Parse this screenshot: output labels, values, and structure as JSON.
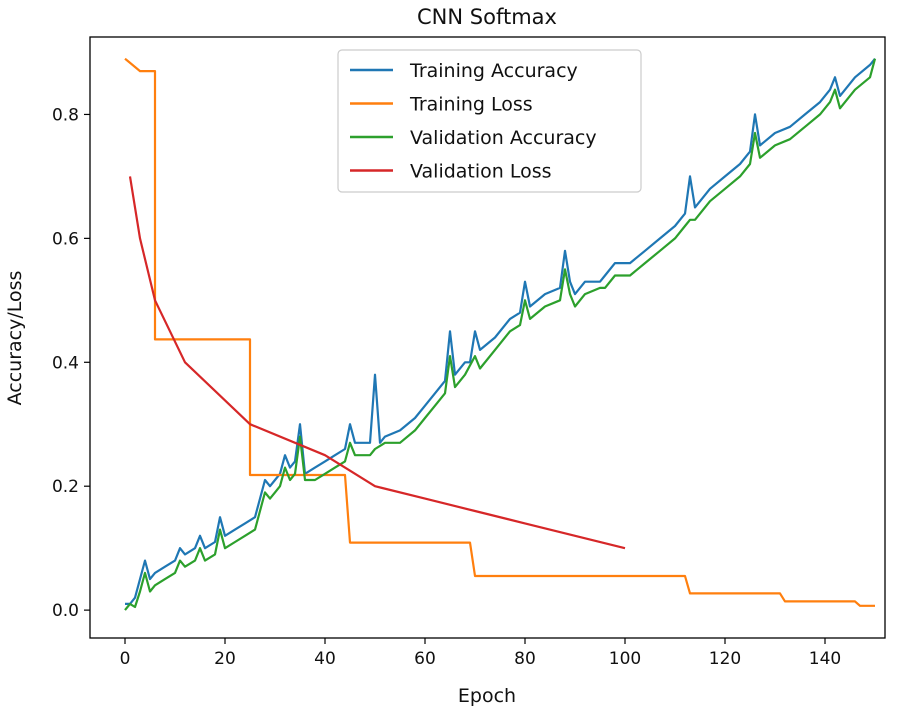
{
  "chart_data": {
    "type": "line",
    "title": "CNN Softmax",
    "xlabel": "Epoch",
    "ylabel": "Accuracy/Loss",
    "xlim": [
      -7,
      152
    ],
    "ylim": [
      -0.045,
      0.925
    ],
    "xticks": [
      0,
      20,
      40,
      60,
      80,
      100,
      120,
      140
    ],
    "xtick_labels": [
      "0",
      "20",
      "40",
      "60",
      "80",
      "100",
      "120",
      "140"
    ],
    "yticks": [
      0.0,
      0.2,
      0.4,
      0.6,
      0.8
    ],
    "ytick_labels": [
      "0.0",
      "0.2",
      "0.4",
      "0.6",
      "0.8"
    ],
    "grid": false,
    "legend_location": "upper center",
    "series": [
      {
        "name": "Training Accuracy",
        "color": "#1f77b4",
        "points": [
          [
            0,
            0.01
          ],
          [
            1,
            0.01
          ],
          [
            2,
            0.02
          ],
          [
            3,
            0.05
          ],
          [
            4,
            0.08
          ],
          [
            5,
            0.05
          ],
          [
            6,
            0.06
          ],
          [
            8,
            0.07
          ],
          [
            10,
            0.08
          ],
          [
            11,
            0.1
          ],
          [
            12,
            0.09
          ],
          [
            14,
            0.1
          ],
          [
            15,
            0.12
          ],
          [
            16,
            0.1
          ],
          [
            18,
            0.11
          ],
          [
            19,
            0.15
          ],
          [
            20,
            0.12
          ],
          [
            22,
            0.13
          ],
          [
            24,
            0.14
          ],
          [
            26,
            0.15
          ],
          [
            27,
            0.18
          ],
          [
            28,
            0.21
          ],
          [
            29,
            0.2
          ],
          [
            30,
            0.21
          ],
          [
            31,
            0.22
          ],
          [
            32,
            0.25
          ],
          [
            33,
            0.23
          ],
          [
            34,
            0.24
          ],
          [
            35,
            0.3
          ],
          [
            36,
            0.22
          ],
          [
            38,
            0.23
          ],
          [
            40,
            0.24
          ],
          [
            42,
            0.25
          ],
          [
            44,
            0.26
          ],
          [
            45,
            0.3
          ],
          [
            46,
            0.27
          ],
          [
            48,
            0.27
          ],
          [
            49,
            0.27
          ],
          [
            50,
            0.38
          ],
          [
            51,
            0.27
          ],
          [
            52,
            0.28
          ],
          [
            55,
            0.29
          ],
          [
            58,
            0.31
          ],
          [
            60,
            0.33
          ],
          [
            62,
            0.35
          ],
          [
            64,
            0.37
          ],
          [
            65,
            0.45
          ],
          [
            66,
            0.38
          ],
          [
            68,
            0.4
          ],
          [
            69,
            0.4
          ],
          [
            70,
            0.45
          ],
          [
            71,
            0.42
          ],
          [
            74,
            0.44
          ],
          [
            77,
            0.47
          ],
          [
            79,
            0.48
          ],
          [
            80,
            0.53
          ],
          [
            81,
            0.49
          ],
          [
            84,
            0.51
          ],
          [
            87,
            0.52
          ],
          [
            88,
            0.58
          ],
          [
            89,
            0.53
          ],
          [
            90,
            0.51
          ],
          [
            92,
            0.53
          ],
          [
            95,
            0.53
          ],
          [
            96,
            0.54
          ],
          [
            98,
            0.56
          ],
          [
            101,
            0.56
          ],
          [
            104,
            0.58
          ],
          [
            107,
            0.6
          ],
          [
            110,
            0.62
          ],
          [
            112,
            0.64
          ],
          [
            113,
            0.7
          ],
          [
            114,
            0.65
          ],
          [
            117,
            0.68
          ],
          [
            120,
            0.7
          ],
          [
            123,
            0.72
          ],
          [
            125,
            0.74
          ],
          [
            126,
            0.8
          ],
          [
            127,
            0.75
          ],
          [
            130,
            0.77
          ],
          [
            133,
            0.78
          ],
          [
            136,
            0.8
          ],
          [
            139,
            0.82
          ],
          [
            141,
            0.84
          ],
          [
            142,
            0.86
          ],
          [
            143,
            0.83
          ],
          [
            146,
            0.86
          ],
          [
            149,
            0.88
          ],
          [
            150,
            0.89
          ]
        ]
      },
      {
        "name": "Training Loss",
        "color": "#ff7f0e",
        "points": [
          [
            0,
            0.89
          ],
          [
            3,
            0.87
          ],
          [
            5,
            0.87
          ],
          [
            6,
            0.87
          ],
          [
            6,
            0.437
          ],
          [
            24,
            0.437
          ],
          [
            25,
            0.437
          ],
          [
            25,
            0.218
          ],
          [
            43,
            0.218
          ],
          [
            44,
            0.218
          ],
          [
            45,
            0.109
          ],
          [
            69,
            0.109
          ],
          [
            70,
            0.055
          ],
          [
            112,
            0.055
          ],
          [
            113,
            0.027
          ],
          [
            131,
            0.027
          ],
          [
            132,
            0.014
          ],
          [
            146,
            0.014
          ],
          [
            147,
            0.007
          ],
          [
            150,
            0.007
          ]
        ]
      },
      {
        "name": "Validation Accuracy",
        "color": "#2ca02c",
        "points": [
          [
            0,
            0.0
          ],
          [
            1,
            0.01
          ],
          [
            2,
            0.005
          ],
          [
            3,
            0.03
          ],
          [
            4,
            0.06
          ],
          [
            5,
            0.03
          ],
          [
            6,
            0.04
          ],
          [
            8,
            0.05
          ],
          [
            10,
            0.06
          ],
          [
            11,
            0.08
          ],
          [
            12,
            0.07
          ],
          [
            14,
            0.08
          ],
          [
            15,
            0.1
          ],
          [
            16,
            0.08
          ],
          [
            18,
            0.09
          ],
          [
            19,
            0.13
          ],
          [
            20,
            0.1
          ],
          [
            22,
            0.11
          ],
          [
            24,
            0.12
          ],
          [
            26,
            0.13
          ],
          [
            27,
            0.16
          ],
          [
            28,
            0.19
          ],
          [
            29,
            0.18
          ],
          [
            30,
            0.19
          ],
          [
            31,
            0.2
          ],
          [
            32,
            0.23
          ],
          [
            33,
            0.21
          ],
          [
            34,
            0.22
          ],
          [
            35,
            0.28
          ],
          [
            36,
            0.21
          ],
          [
            38,
            0.21
          ],
          [
            40,
            0.22
          ],
          [
            42,
            0.23
          ],
          [
            44,
            0.24
          ],
          [
            45,
            0.27
          ],
          [
            46,
            0.25
          ],
          [
            48,
            0.25
          ],
          [
            49,
            0.25
          ],
          [
            50,
            0.26
          ],
          [
            52,
            0.27
          ],
          [
            55,
            0.27
          ],
          [
            58,
            0.29
          ],
          [
            60,
            0.31
          ],
          [
            62,
            0.33
          ],
          [
            64,
            0.35
          ],
          [
            65,
            0.41
          ],
          [
            66,
            0.36
          ],
          [
            68,
            0.38
          ],
          [
            70,
            0.41
          ],
          [
            71,
            0.39
          ],
          [
            74,
            0.42
          ],
          [
            77,
            0.45
          ],
          [
            79,
            0.46
          ],
          [
            80,
            0.5
          ],
          [
            81,
            0.47
          ],
          [
            84,
            0.49
          ],
          [
            87,
            0.5
          ],
          [
            88,
            0.55
          ],
          [
            89,
            0.51
          ],
          [
            90,
            0.49
          ],
          [
            92,
            0.51
          ],
          [
            95,
            0.52
          ],
          [
            96,
            0.52
          ],
          [
            98,
            0.54
          ],
          [
            101,
            0.54
          ],
          [
            104,
            0.56
          ],
          [
            107,
            0.58
          ],
          [
            110,
            0.6
          ],
          [
            112,
            0.62
          ],
          [
            113,
            0.63
          ],
          [
            114,
            0.63
          ],
          [
            117,
            0.66
          ],
          [
            120,
            0.68
          ],
          [
            123,
            0.7
          ],
          [
            125,
            0.72
          ],
          [
            126,
            0.77
          ],
          [
            127,
            0.73
          ],
          [
            130,
            0.75
          ],
          [
            133,
            0.76
          ],
          [
            136,
            0.78
          ],
          [
            139,
            0.8
          ],
          [
            141,
            0.82
          ],
          [
            142,
            0.84
          ],
          [
            143,
            0.81
          ],
          [
            146,
            0.84
          ],
          [
            149,
            0.86
          ],
          [
            150,
            0.89
          ]
        ]
      },
      {
        "name": "Validation Loss",
        "color": "#d62728",
        "points": [
          [
            1,
            0.7
          ],
          [
            3,
            0.6
          ],
          [
            6,
            0.5
          ],
          [
            12,
            0.4
          ],
          [
            25,
            0.3
          ],
          [
            40,
            0.25
          ],
          [
            44,
            0.23
          ],
          [
            50,
            0.2
          ],
          [
            60,
            0.18
          ],
          [
            70,
            0.16
          ],
          [
            80,
            0.14
          ],
          [
            90,
            0.12
          ],
          [
            100,
            0.1
          ]
        ]
      }
    ]
  }
}
